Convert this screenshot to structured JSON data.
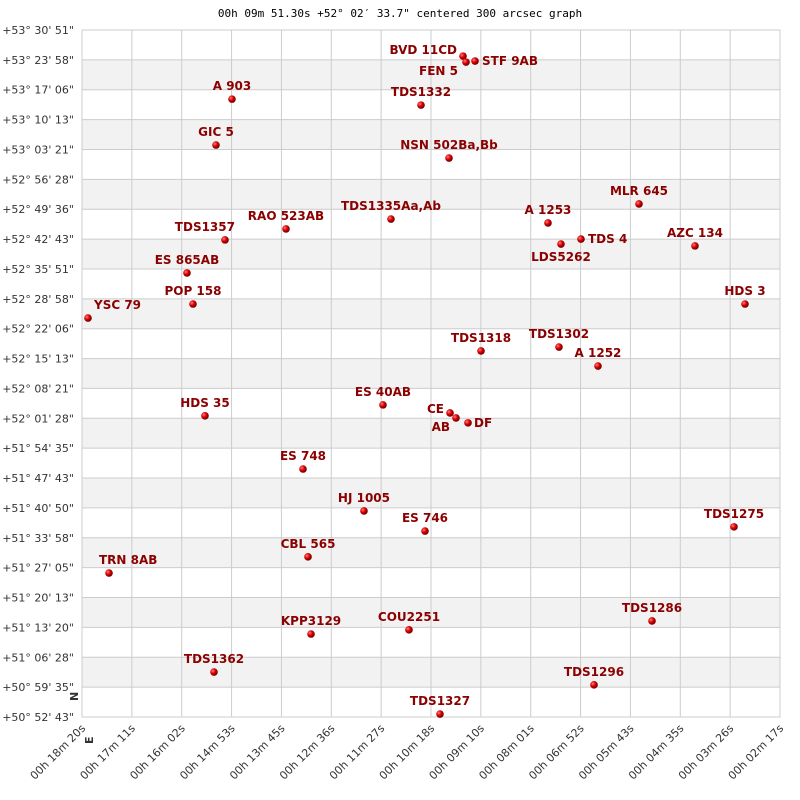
{
  "chart_data": {
    "type": "scatter",
    "title": "00h 09m 51.30s +52° 02′ 33.7\" centered 300 arcsec graph",
    "xlabel": "",
    "ylabel": "",
    "x_units": "RA minutes (00h)",
    "y_units": "Dec degrees",
    "xlim": [
      18.333,
      2.283
    ],
    "ylim": [
      50.8786,
      53.5142
    ],
    "x_reversed": true,
    "grid": true,
    "alternating_bands": true,
    "compass": {
      "north": "N",
      "east": "E"
    },
    "x_ticks": [
      "00h 18m 20s",
      "00h 17m 11s",
      "00h 16m 02s",
      "00h 14m 53s",
      "00h 13m 45s",
      "00h 12m 36s",
      "00h 11m 27s",
      "00h 10m 18s",
      "00h 09m 10s",
      "00h 08m 01s",
      "00h 06m 52s",
      "00h 05m 43s",
      "00h 04m 35s",
      "00h 03m 26s",
      "00h 02m 17s"
    ],
    "y_ticks": [
      "+53° 30' 51\"",
      "+53° 23' 58\"",
      "+53° 17' 06\"",
      "+53° 10' 13\"",
      "+53° 03' 21\"",
      "+52° 56' 28\"",
      "+52° 49' 36\"",
      "+52° 42' 43\"",
      "+52° 35' 51\"",
      "+52° 28' 58\"",
      "+52° 22' 06\"",
      "+52° 15' 13\"",
      "+52° 08' 21\"",
      "+52° 01' 28\"",
      "+51° 54' 35\"",
      "+51° 47' 43\"",
      "+51° 40' 50\"",
      "+51° 33' 58\"",
      "+51° 27' 05\"",
      "+51° 20' 13\"",
      "+51° 13' 20\"",
      "+51° 06' 28\"",
      "+50° 59' 35\"",
      "+50° 52' 43\""
    ],
    "colors": {
      "point": "#cc0000",
      "label": "#8b0000",
      "band": "#f2f2f2",
      "grid": "#cccccc"
    },
    "points": [
      {
        "name": "BVD  11CD",
        "ra": 9.572,
        "dec": 53.414
      },
      {
        "name": "FEN  5",
        "ra": 9.503,
        "dec": 53.391
      },
      {
        "name": "STF  9AB",
        "ra": 9.296,
        "dec": 53.395
      },
      {
        "name": "A   903",
        "ra": 14.884,
        "dec": 53.249
      },
      {
        "name": "TDS1332",
        "ra": 10.538,
        "dec": 53.226
      },
      {
        "name": "GIC   5",
        "ra": 15.252,
        "dec": 53.073
      },
      {
        "name": "NSN 502Ba,Bb",
        "ra": 9.894,
        "dec": 53.023
      },
      {
        "name": "MLR 645",
        "ra": 5.525,
        "dec": 52.847
      },
      {
        "name": "A  1253",
        "ra": 7.618,
        "dec": 52.774
      },
      {
        "name": "TDS   4",
        "ra": 6.859,
        "dec": 52.712
      },
      {
        "name": "LDS5262",
        "ra": 7.319,
        "dec": 52.693
      },
      {
        "name": "AZC 134",
        "ra": 4.238,
        "dec": 52.686
      },
      {
        "name": "TDS1335Aa,Ab",
        "ra": 11.228,
        "dec": 52.789
      },
      {
        "name": "RAO 523AB",
        "ra": 13.642,
        "dec": 52.751
      },
      {
        "name": "TDS1357",
        "ra": 15.045,
        "dec": 52.709
      },
      {
        "name": "ES  865AB",
        "ra": 15.919,
        "dec": 52.582
      },
      {
        "name": "POP 158",
        "ra": 15.781,
        "dec": 52.463
      },
      {
        "name": "YSC  79",
        "ra": 18.195,
        "dec": 52.409
      },
      {
        "name": "HDS   3",
        "ra": 3.088,
        "dec": 52.463
      },
      {
        "name": "TDS1318",
        "ra": 9.158,
        "dec": 52.283
      },
      {
        "name": "TDS1302",
        "ra": 7.365,
        "dec": 52.298
      },
      {
        "name": "A  1252",
        "ra": 6.468,
        "dec": 52.225
      },
      {
        "name": "ES   40AB",
        "ra": 11.412,
        "dec": 52.076
      },
      {
        "name": "CE",
        "ra": 9.871,
        "dec": 52.045
      },
      {
        "name": "AB",
        "ra": 9.733,
        "dec": 52.026
      },
      {
        "name": "DF",
        "ra": 9.457,
        "dec": 52.007
      },
      {
        "name": "HDS  35",
        "ra": 15.505,
        "dec": 52.034
      },
      {
        "name": "ES  748",
        "ra": 13.251,
        "dec": 51.83
      },
      {
        "name": "HJ 1005",
        "ra": 11.849,
        "dec": 51.669
      },
      {
        "name": "ES  746",
        "ra": 10.446,
        "dec": 51.592
      },
      {
        "name": "TDS1275",
        "ra": 3.341,
        "dec": 51.608
      },
      {
        "name": "CBL 565",
        "ra": 13.136,
        "dec": 51.493
      },
      {
        "name": "TRN   8AB",
        "ra": 17.712,
        "dec": 51.431
      },
      {
        "name": "TDS1286",
        "ra": 5.226,
        "dec": 51.247
      },
      {
        "name": "KPP3129",
        "ra": 13.067,
        "dec": 51.197
      },
      {
        "name": "COU2251",
        "ra": 10.814,
        "dec": 51.213
      },
      {
        "name": "TDS1362",
        "ra": 15.298,
        "dec": 51.051
      },
      {
        "name": "TDS1296",
        "ra": 6.56,
        "dec": 51.002
      },
      {
        "name": "TDS1327",
        "ra": 10.101,
        "dec": 50.89
      }
    ]
  }
}
